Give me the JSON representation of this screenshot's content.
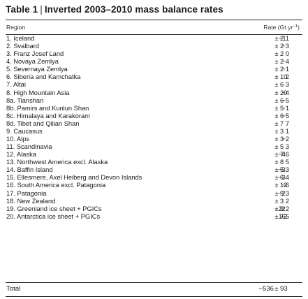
{
  "table": {
    "number": "Table 1",
    "separator": "|",
    "caption": "Inverted 2003–2010 mass balance rates",
    "header": {
      "region": "Region",
      "rate": "Rate (Gt yr",
      "rate_sup": "−1",
      "rate_close": ")"
    },
    "rows": [
      {
        "region": "1. Iceland",
        "rate": "−11",
        "error": "2"
      },
      {
        "region": "2. Svalbard",
        "rate": "−3",
        "error": "2"
      },
      {
        "region": "3. Franz Josef Land",
        "rate": "0",
        "error": "2"
      },
      {
        "region": "4. Novaya Zemlya",
        "rate": "−4",
        "error": "2"
      },
      {
        "region": "5. Severnaya Zemlya",
        "rate": "−1",
        "error": "2"
      },
      {
        "region": "6. Siberia and Kamchatka",
        "rate": "2",
        "error": "10"
      },
      {
        "region": "7. Altai",
        "rate": "3",
        "error": "6"
      },
      {
        "region": "8. High Mountain Asia",
        "rate": "−4",
        "error": "20"
      },
      {
        "region": "8a. Tianshan",
        "rate": "−5",
        "error": "6"
      },
      {
        "region": "8b. Pamirs and Kunlun Shan",
        "rate": "−1",
        "error": "5"
      },
      {
        "region": "8c. Himalaya and Karakoram",
        "rate": "−5",
        "error": "6"
      },
      {
        "region": "8d. Tibet and Qilian Shan",
        "rate": "7",
        "error": "7"
      },
      {
        "region": "9. Caucasus",
        "rate": "1",
        "error": "3"
      },
      {
        "region": "10. Alps",
        "rate": "−2",
        "error": "3"
      },
      {
        "region": "11. Scandinavia",
        "rate": "3",
        "error": "5"
      },
      {
        "region": "12. Alaska",
        "rate": "−46",
        "error": "7"
      },
      {
        "region": "13. Northwest America excl. Alaska",
        "rate": "5",
        "error": "8"
      },
      {
        "region": "14. Baffin Island",
        "rate": "−33",
        "error": "5"
      },
      {
        "region": "15. Ellesmere, Axel Heiberg and Devon Islands",
        "rate": "−34",
        "error": "6"
      },
      {
        "region": "16. South America excl. Patagonia",
        "rate": "−6",
        "error": "12"
      },
      {
        "region": "17. Patagonia",
        "rate": "−23",
        "error": "9"
      },
      {
        "region": "18. New Zealand",
        "rate": "2",
        "error": "3"
      },
      {
        "region": "19. Greenland ice sheet + PGICs",
        "rate": "−222",
        "error": "9"
      },
      {
        "region": "20. Antarctica ice sheet + PGICs",
        "rate": "−165",
        "error": "72"
      }
    ],
    "total": {
      "region": "Total",
      "rate": "−536",
      "error": "93"
    },
    "pm_symbol": "±"
  }
}
